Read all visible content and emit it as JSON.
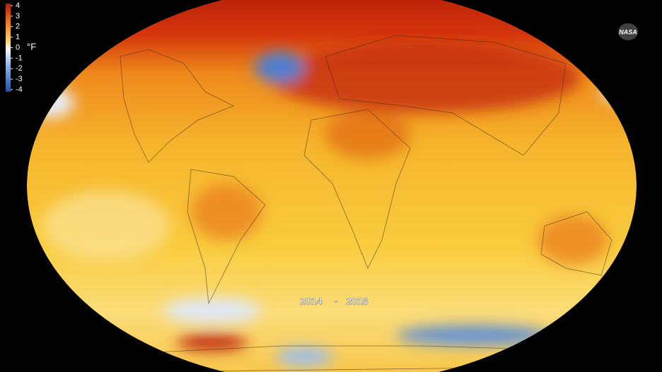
{
  "legend": {
    "ticks": [
      4,
      3,
      2,
      1,
      0,
      -1,
      -2,
      -3,
      -4
    ],
    "unit": "°F"
  },
  "period": {
    "start": "2014",
    "separator": "-",
    "end": "2018"
  },
  "logo": "NASA"
}
